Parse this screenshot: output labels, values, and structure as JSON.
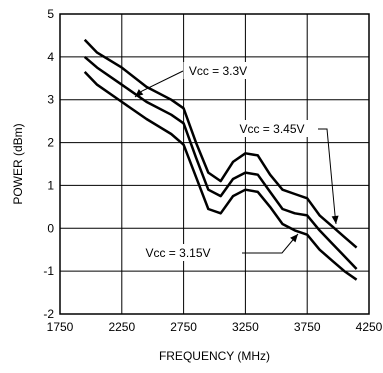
{
  "chart_data": {
    "type": "line",
    "title": "",
    "xlabel": "FREQUENCY (MHz)",
    "ylabel": "POWER (dBm)",
    "xlim": [
      1750,
      4250
    ],
    "ylim": [
      -2,
      5
    ],
    "xticks": [
      1750,
      2250,
      2750,
      3250,
      3750,
      4250
    ],
    "yticks": [
      -2,
      -1,
      0,
      1,
      2,
      3,
      4,
      5
    ],
    "xtick_labels": [
      "1750",
      "2250",
      "2750",
      "3250",
      "3750",
      "4250"
    ],
    "ytick_labels": [
      "-2",
      "-1",
      "0",
      "1",
      "2",
      "3",
      "4",
      "5"
    ],
    "grid": true,
    "legend": "none",
    "series": [
      {
        "name": "Vcc = 3.45V",
        "x": [
          1950,
          2050,
          2250,
          2450,
          2650,
          2750,
          2850,
          2950,
          3050,
          3150,
          3250,
          3350,
          3450,
          3550,
          3650,
          3750,
          3850,
          3950,
          4050,
          4150
        ],
        "y": [
          4.4,
          4.1,
          3.75,
          3.3,
          3.0,
          2.8,
          2.0,
          1.3,
          1.1,
          1.55,
          1.75,
          1.7,
          1.25,
          0.9,
          0.8,
          0.7,
          0.3,
          0.05,
          -0.2,
          -0.45
        ]
      },
      {
        "name": "Vcc = 3.3V",
        "x": [
          1950,
          2050,
          2250,
          2450,
          2650,
          2750,
          2850,
          2950,
          3050,
          3150,
          3250,
          3350,
          3450,
          3550,
          3650,
          3750,
          3850,
          3950,
          4050,
          4150
        ],
        "y": [
          4.0,
          3.75,
          3.35,
          2.95,
          2.65,
          2.45,
          1.65,
          0.9,
          0.75,
          1.15,
          1.3,
          1.25,
          0.85,
          0.45,
          0.35,
          0.3,
          -0.05,
          -0.35,
          -0.65,
          -0.95
        ]
      },
      {
        "name": "Vcc = 3.15V",
        "x": [
          1950,
          2050,
          2250,
          2450,
          2650,
          2750,
          2850,
          2950,
          3050,
          3150,
          3250,
          3350,
          3450,
          3550,
          3650,
          3750,
          3850,
          3950,
          4050,
          4150
        ],
        "y": [
          3.65,
          3.35,
          2.95,
          2.55,
          2.2,
          1.95,
          1.2,
          0.45,
          0.35,
          0.75,
          0.9,
          0.85,
          0.5,
          0.1,
          -0.05,
          -0.15,
          -0.5,
          -0.75,
          -1.0,
          -1.2
        ]
      }
    ],
    "annotations": [
      {
        "text": "Vcc = 3.3V"
      },
      {
        "text": "Vcc = 3.45V"
      },
      {
        "text": "Vcc = 3.15V"
      }
    ]
  }
}
